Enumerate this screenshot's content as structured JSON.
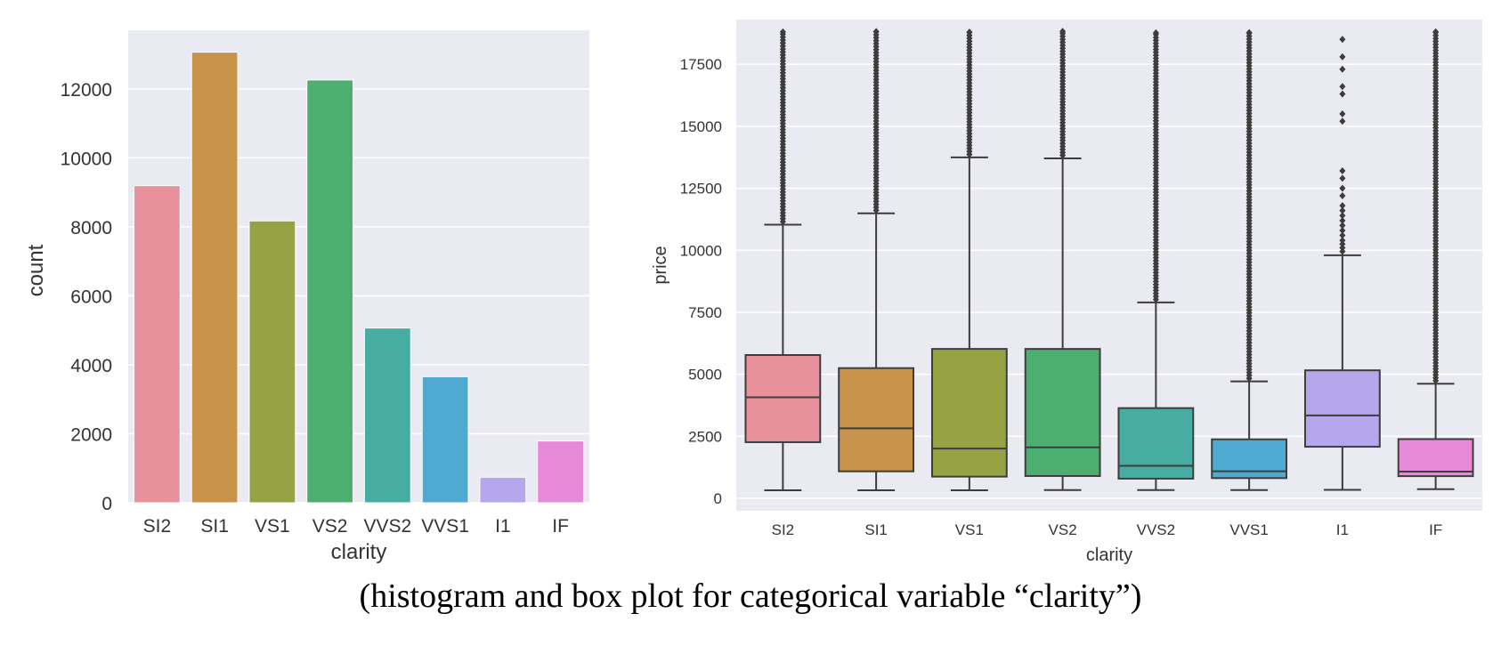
{
  "caption": "(histogram and box plot for categorical variable “clarity”)",
  "chart_data": [
    {
      "type": "bar",
      "categories": [
        "SI2",
        "SI1",
        "VS1",
        "VS2",
        "VVS2",
        "VVS1",
        "I1",
        "IF"
      ],
      "values": [
        9194,
        13065,
        8171,
        12258,
        5066,
        3655,
        741,
        1790
      ],
      "colors": [
        "#e8919c",
        "#c8934b",
        "#97a245",
        "#4cae6f",
        "#47aca2",
        "#4eaad1",
        "#b6a6ec",
        "#e68ad8"
      ],
      "xlabel": "clarity",
      "ylabel": "count",
      "ylim": [
        0,
        13700
      ],
      "yticks": [
        0,
        2000,
        4000,
        6000,
        8000,
        10000,
        12000
      ],
      "grid": true
    },
    {
      "type": "box",
      "categories": [
        "SI2",
        "SI1",
        "VS1",
        "VS2",
        "VVS2",
        "VVS1",
        "I1",
        "IF"
      ],
      "colors": [
        "#e8919c",
        "#c8934b",
        "#97a245",
        "#4cae6f",
        "#47aca2",
        "#4eaad1",
        "#b6a6ec",
        "#e68ad8"
      ],
      "boxes": [
        {
          "whisker_low": 326,
          "q1": 2264,
          "median": 4072,
          "q3": 5777,
          "whisker_high": 11032,
          "outlier_range": [
            11032,
            18804
          ]
        },
        {
          "whisker_low": 326,
          "q1": 1089,
          "median": 2822,
          "q3": 5250,
          "whisker_high": 11490,
          "outlier_range": [
            11490,
            18818
          ]
        },
        {
          "whisker_low": 327,
          "q1": 876,
          "median": 2005,
          "q3": 6023,
          "whisker_high": 13745,
          "outlier_range": [
            13745,
            18795
          ]
        },
        {
          "whisker_low": 334,
          "q1": 900,
          "median": 2054,
          "q3": 6023,
          "whisker_high": 13704,
          "outlier_range": [
            13704,
            18823
          ]
        },
        {
          "whisker_low": 336,
          "q1": 794,
          "median": 1311,
          "q3": 3638,
          "whisker_high": 7900,
          "outlier_range": [
            7900,
            18768
          ]
        },
        {
          "whisker_low": 336,
          "q1": 816,
          "median": 1093,
          "q3": 2379,
          "whisker_high": 4715,
          "outlier_range": [
            4715,
            18777
          ]
        },
        {
          "whisker_low": 345,
          "q1": 2080,
          "median": 3344,
          "q3": 5161,
          "whisker_high": 9800,
          "outliers": [
            9950,
            10100,
            10250,
            10400,
            10600,
            10800,
            11000,
            11200,
            11400,
            11600,
            11800,
            12200,
            12500,
            12900,
            13200,
            15200,
            15500,
            16300,
            16600,
            17300,
            17800,
            18500
          ]
        },
        {
          "whisker_low": 369,
          "q1": 895,
          "median": 1080,
          "q3": 2388,
          "whisker_high": 4620,
          "outlier_range": [
            4620,
            18806
          ]
        }
      ],
      "xlabel": "clarity",
      "ylabel": "price",
      "ylim": [
        -500,
        19300
      ],
      "yticks": [
        0,
        2500,
        5000,
        7500,
        10000,
        12500,
        15000,
        17500
      ],
      "grid": true
    }
  ]
}
